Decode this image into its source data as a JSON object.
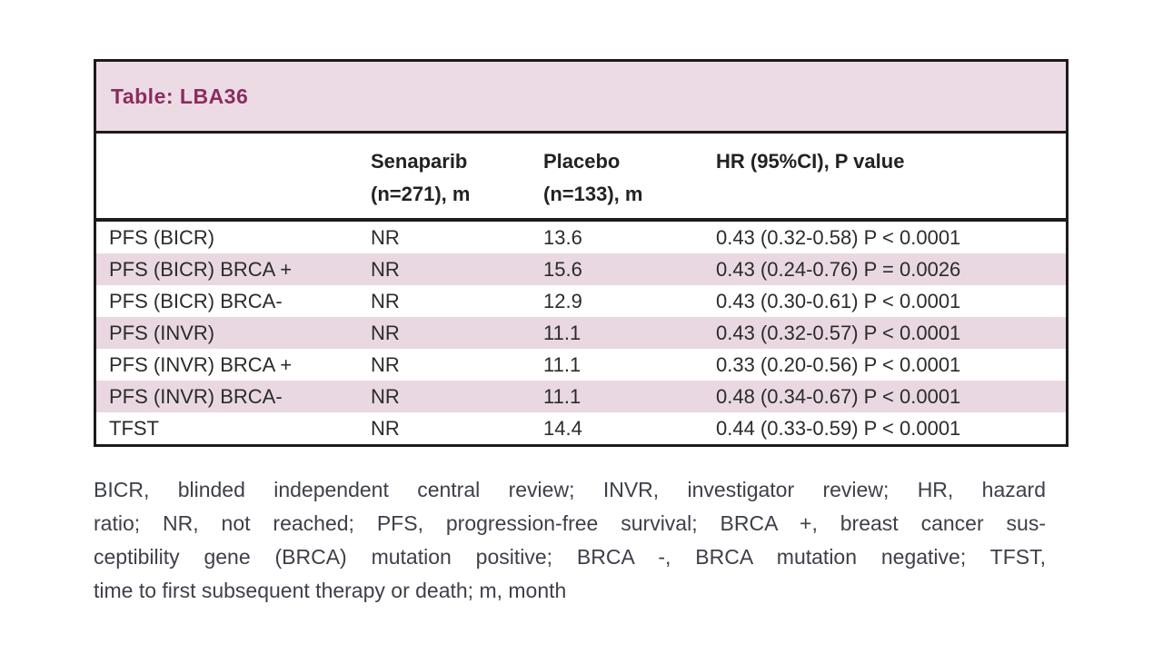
{
  "table": {
    "title": "Table: LBA36",
    "header": {
      "col1": "",
      "col2_line1": "Senaparib",
      "col2_line2": "(n=271), m",
      "col3_line1": "Placebo",
      "col3_line2": "(n=133), m",
      "col4": "HR (95%CI), P value"
    },
    "rows": [
      {
        "label": "PFS (BICR)",
        "senaparib": "NR",
        "placebo": "13.6",
        "hr": "0.43 (0.32-0.58) P < 0.0001"
      },
      {
        "label": "PFS (BICR) BRCA +",
        "senaparib": "NR",
        "placebo": "15.6",
        "hr": "0.43 (0.24-0.76) P = 0.0026"
      },
      {
        "label": "PFS (BICR) BRCA-",
        "senaparib": "NR",
        "placebo": "12.9",
        "hr": "0.43 (0.30-0.61) P < 0.0001"
      },
      {
        "label": "PFS (INVR)",
        "senaparib": "NR",
        "placebo": "11.1",
        "hr": "0.43 (0.32-0.57) P < 0.0001"
      },
      {
        "label": "PFS (INVR) BRCA +",
        "senaparib": "NR",
        "placebo": "11.1",
        "hr": "0.33 (0.20-0.56) P < 0.0001"
      },
      {
        "label": "PFS (INVR) BRCA-",
        "senaparib": "NR",
        "placebo": "11.1",
        "hr": "0.48 (0.34-0.67) P < 0.0001"
      },
      {
        "label": "TFST",
        "senaparib": "NR",
        "placebo": "14.4",
        "hr": "0.44 (0.33-0.59) P < 0.0001"
      }
    ]
  },
  "footnote": {
    "lines": [
      "BICR, blinded independent central review; INVR, investigator review; HR, hazard",
      "ratio; NR, not reached; PFS, progression-free survival; BRCA +, breast cancer sus-",
      "ceptibility gene (BRCA) mutation positive; BRCA -, BRCA mutation negative; TFST,",
      "time to first subsequent therapy or death; m, month"
    ]
  },
  "colors": {
    "title_band_background": "#ecdbe4",
    "striped_row_background": "#e9d8e2",
    "title_text": "#8a2d60",
    "table_border": "#1c1c1c",
    "body_text": "#2b2b2b",
    "footnote_text": "#3e4049",
    "page_background": "#ffffff"
  }
}
